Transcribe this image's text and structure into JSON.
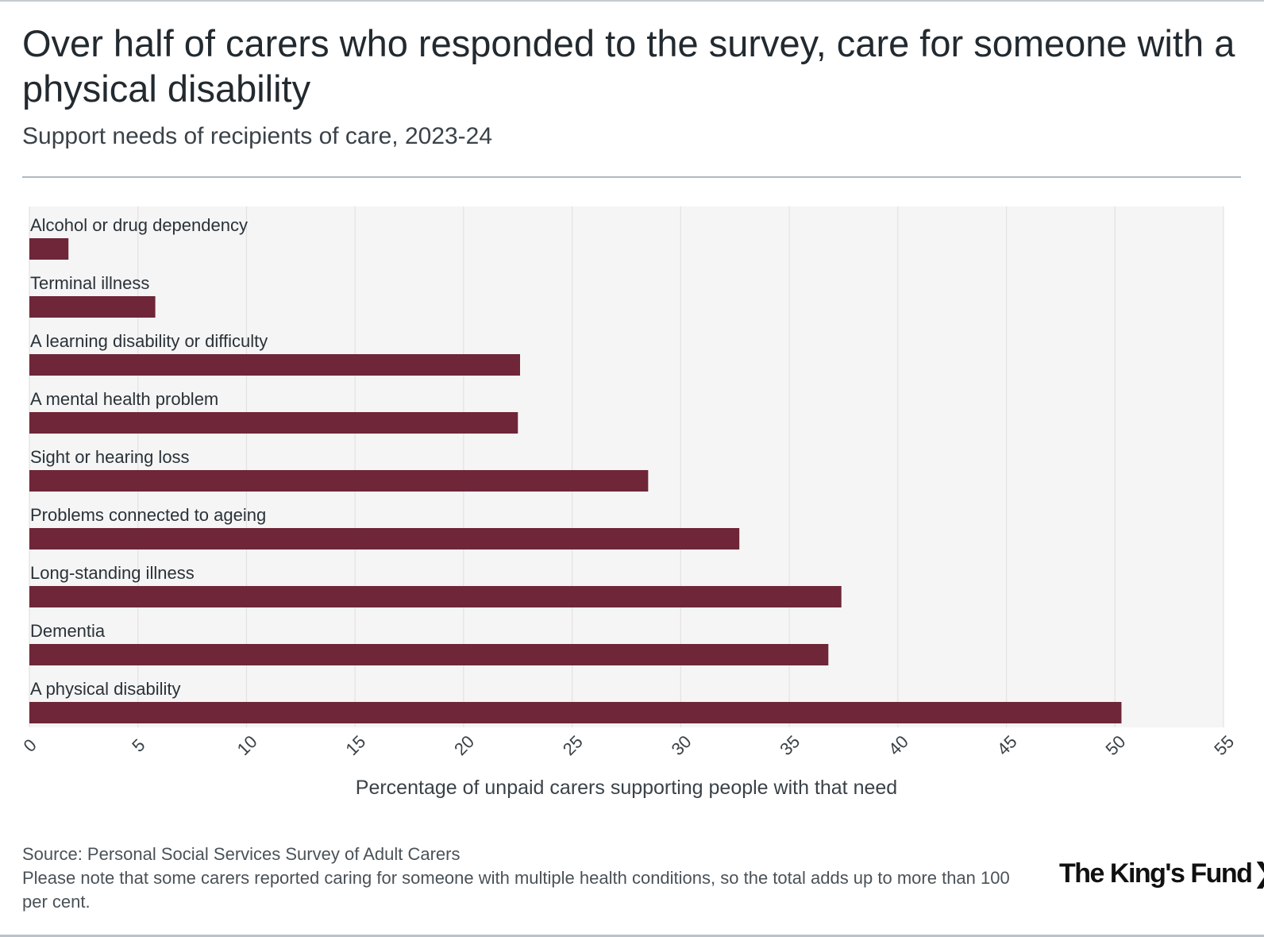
{
  "header": {
    "title": "Over half of carers who responded to the survey, care for someone with a physical disability",
    "subtitle": "Support needs of recipients of care, 2023-24"
  },
  "footer": {
    "source": "Source: Personal Social Services Survey of Adult Carers",
    "note": "Please note that some carers reported caring for someone with multiple health conditions, so the total adds up to more than 100 per cent.",
    "logo_text": "The King's Fund",
    "logo_chevron": "❯"
  },
  "colors": {
    "bar": "#6e2638",
    "plot_bg": "#f5f5f5",
    "grid": "#e2e2e2"
  },
  "chart_data": {
    "type": "bar",
    "orientation": "horizontal",
    "title": "Over half of carers who responded to the survey, care for someone with a physical disability",
    "subtitle": "Support needs of recipients of care, 2023-24",
    "categories": [
      "Alcohol or drug dependency",
      "Terminal illness",
      "A learning disability or difficulty",
      "A mental health problem",
      "Sight or hearing loss",
      "Problems connected to ageing",
      "Long-standing illness",
      "Dementia",
      "A physical disability"
    ],
    "values": [
      1.8,
      5.8,
      22.6,
      22.5,
      28.5,
      32.7,
      37.4,
      36.8,
      50.3
    ],
    "xlabel": "Percentage of unpaid carers supporting people with that need",
    "ylabel": "",
    "xlim": [
      0,
      55
    ],
    "xticks": [
      "0",
      "5",
      "10",
      "15",
      "20",
      "25",
      "30",
      "35",
      "40",
      "45",
      "50",
      "55"
    ],
    "grid": true,
    "legend": "none"
  }
}
